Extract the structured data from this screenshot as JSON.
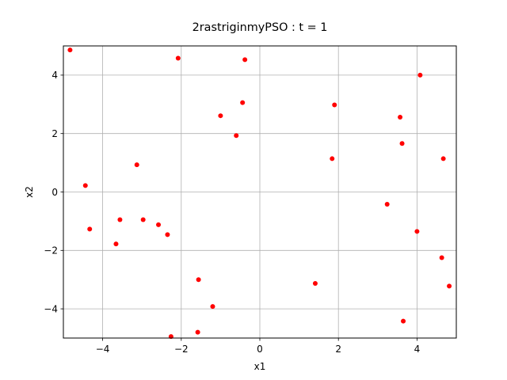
{
  "chart_data": {
    "type": "scatter",
    "title": "2rastriginmyPSO : t =  1",
    "xlabel": "x1",
    "ylabel": "x2",
    "xlim": [
      -5,
      5
    ],
    "ylim": [
      -5,
      5
    ],
    "xticks": [
      -4,
      -2,
      0,
      2,
      4
    ],
    "yticks": [
      -4,
      -2,
      0,
      2,
      4
    ],
    "xtick_labels": [
      "−4",
      "−2",
      "0",
      "2",
      "4"
    ],
    "ytick_labels": [
      "−4",
      "−2",
      "0",
      "2",
      "4"
    ],
    "grid": true,
    "marker_color": "#ff0000",
    "series": [
      {
        "points": [
          [
            -4.83,
            4.86
          ],
          [
            -2.08,
            4.58
          ],
          [
            -0.38,
            4.53
          ],
          [
            -0.44,
            3.06
          ],
          [
            -1.0,
            2.61
          ],
          [
            -0.6,
            1.93
          ],
          [
            -3.13,
            0.93
          ],
          [
            -4.44,
            0.22
          ],
          [
            -4.33,
            -1.27
          ],
          [
            -3.56,
            -0.95
          ],
          [
            -2.97,
            -0.95
          ],
          [
            -2.58,
            -1.12
          ],
          [
            -2.35,
            -1.46
          ],
          [
            -3.66,
            -1.78
          ],
          [
            -1.56,
            -3.0
          ],
          [
            -1.2,
            -3.92
          ],
          [
            -1.58,
            -4.8
          ],
          [
            -2.26,
            -4.95
          ],
          [
            1.9,
            2.98
          ],
          [
            1.84,
            1.14
          ],
          [
            4.08,
            4.0
          ],
          [
            3.57,
            2.56
          ],
          [
            3.62,
            1.66
          ],
          [
            4.67,
            1.14
          ],
          [
            3.24,
            -0.42
          ],
          [
            4.0,
            -1.35
          ],
          [
            4.63,
            -2.25
          ],
          [
            4.82,
            -3.22
          ],
          [
            1.41,
            -3.13
          ],
          [
            3.65,
            -4.42
          ]
        ]
      }
    ]
  }
}
